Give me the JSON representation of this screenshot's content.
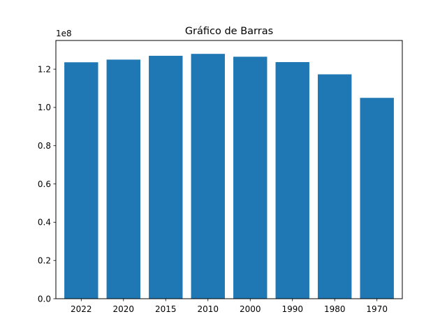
{
  "chart_data": {
    "type": "bar",
    "title": "Gráfico de Barras",
    "xlabel": "",
    "ylabel": "",
    "categories": [
      "2022",
      "2020",
      "2015",
      "2010",
      "2000",
      "1990",
      "1980",
      "1970"
    ],
    "values": [
      123600000,
      125000000,
      127000000,
      128000000,
      126500000,
      123700000,
      117300000,
      105000000
    ],
    "ylim": [
      0,
      135000000
    ],
    "y_scale_label": "1e8",
    "y_ticks": [
      0,
      20000000,
      40000000,
      60000000,
      80000000,
      100000000,
      120000000
    ],
    "y_tick_labels": [
      "0.0",
      "0.2",
      "0.4",
      "0.6",
      "0.8",
      "1.0",
      "1.2"
    ],
    "grid": false,
    "bar_color": "#1f77b4"
  }
}
